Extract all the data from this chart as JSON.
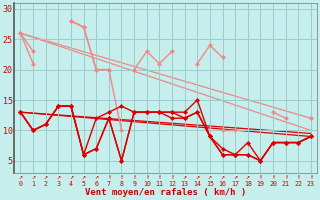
{
  "bg_color": "#c6eeec",
  "grid_color": "#99cccc",
  "x": [
    0,
    1,
    2,
    3,
    4,
    5,
    6,
    7,
    8,
    9,
    10,
    11,
    12,
    13,
    14,
    15,
    16,
    17,
    18,
    19,
    20,
    21,
    22,
    23
  ],
  "series": [
    {
      "y": [
        26,
        21,
        null,
        null,
        28,
        27,
        20,
        20,
        10,
        null,
        null,
        null,
        null,
        null,
        null,
        null,
        null,
        null,
        null,
        null,
        null,
        null,
        null,
        null
      ],
      "color": "#f08888",
      "lw": 1.0,
      "marker": "D",
      "ms": 2.5,
      "connect_all": false
    },
    {
      "y": [
        26,
        23,
        null,
        null,
        28,
        27,
        20,
        20,
        null,
        null,
        null,
        null,
        null,
        null,
        null,
        null,
        null,
        null,
        null,
        null,
        null,
        null,
        null,
        null
      ],
      "color": "#f08888",
      "lw": 1.0,
      "marker": "D",
      "ms": 2.5,
      "connect_all": false
    },
    {
      "y": [
        null,
        null,
        null,
        null,
        null,
        null,
        null,
        null,
        null,
        20,
        23,
        21,
        23,
        null,
        21,
        24,
        22,
        null,
        null,
        null,
        13,
        12,
        null,
        12
      ],
      "color": "#f08888",
      "lw": 1.0,
      "marker": "D",
      "ms": 2.5,
      "connect_all": false
    },
    {
      "y": [
        null,
        null,
        null,
        null,
        null,
        null,
        null,
        null,
        null,
        null,
        null,
        null,
        null,
        null,
        null,
        null,
        10,
        10,
        null,
        null,
        null,
        null,
        null,
        null
      ],
      "color": "#f08888",
      "lw": 1.0,
      "marker": "D",
      "ms": 2.5,
      "connect_all": false
    },
    {
      "y": [
        13,
        10,
        11,
        14,
        14,
        6,
        12,
        13,
        14,
        13,
        13,
        13,
        13,
        12,
        13,
        9,
        7,
        6,
        6,
        5,
        8,
        8,
        8,
        9
      ],
      "color": "#dd0000",
      "lw": 1.0,
      "marker": "D",
      "ms": 2.5,
      "connect_all": true
    },
    {
      "y": [
        13,
        10,
        11,
        14,
        14,
        6,
        7,
        12,
        5,
        13,
        13,
        13,
        13,
        13,
        15,
        9,
        6,
        6,
        8,
        5,
        8,
        8,
        8,
        9
      ],
      "color": "#dd0000",
      "lw": 1.0,
      "marker": "D",
      "ms": 2.5,
      "connect_all": true
    },
    {
      "y": [
        13,
        10,
        11,
        14,
        14,
        6,
        7,
        12,
        5,
        13,
        13,
        13,
        12,
        12,
        13,
        9,
        6,
        6,
        6,
        5,
        8,
        8,
        8,
        9
      ],
      "color": "#dd0000",
      "lw": 1.0,
      "marker": "D",
      "ms": 2.5,
      "connect_all": true
    }
  ],
  "trend_lines": [
    {
      "x0": 0,
      "y0": 26,
      "x1": 23,
      "y1": 12,
      "color": "#f08888",
      "lw": 0.9
    },
    {
      "x0": 0,
      "y0": 26,
      "x1": 23,
      "y1": 10,
      "color": "#f08888",
      "lw": 0.9
    },
    {
      "x0": 0,
      "y0": 13,
      "x1": 23,
      "y1": 9.5,
      "color": "#dd0000",
      "lw": 0.9
    },
    {
      "x0": 0,
      "y0": 13,
      "x1": 23,
      "y1": 9,
      "color": "#dd0000",
      "lw": 0.9
    }
  ],
  "xlabel": "Vent moyen/en rafales ( km/h )",
  "ylim": [
    3,
    31
  ],
  "xlim": [
    -0.5,
    23.5
  ],
  "yticks": [
    5,
    10,
    15,
    20,
    25,
    30
  ],
  "xticks": [
    0,
    1,
    2,
    3,
    4,
    5,
    6,
    7,
    8,
    9,
    10,
    11,
    12,
    13,
    14,
    15,
    16,
    17,
    18,
    19,
    20,
    21,
    22,
    23
  ],
  "arrow_symbols": [
    "↗",
    "↗",
    "↗",
    "↗",
    "↗",
    "↗",
    "↗",
    "↑",
    "↑",
    "↑",
    "↑",
    "↑",
    "↑",
    "↗",
    "↗",
    "↗",
    "↗",
    "↗",
    "↗",
    "↑",
    "↑",
    "↑",
    "↑",
    "↑"
  ]
}
